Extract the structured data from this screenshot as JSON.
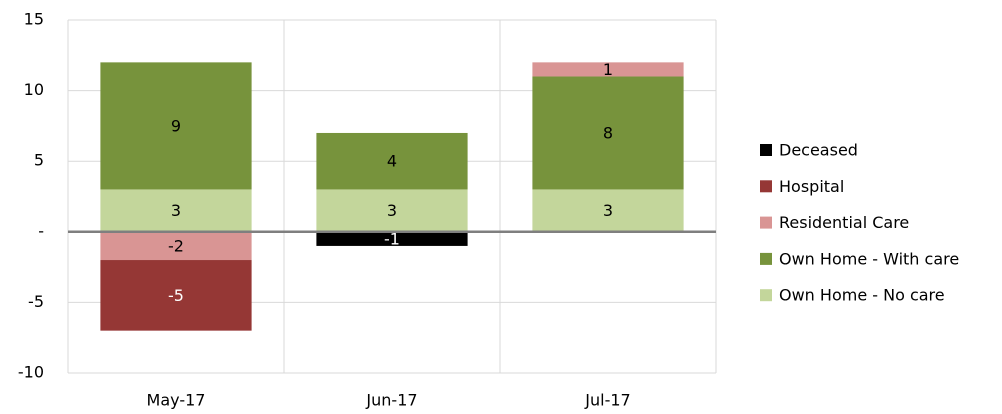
{
  "chart_data": {
    "type": "stacked_bar",
    "categories": [
      "May-17",
      "Jun-17",
      "Jul-17"
    ],
    "series": [
      {
        "name": "Deceased",
        "color": "#000000",
        "values": [
          null,
          -1,
          null
        ]
      },
      {
        "name": "Hospital",
        "color": "#953735",
        "values": [
          -5,
          null,
          null
        ]
      },
      {
        "name": "Residential Care",
        "color": "#d99594",
        "values": [
          -2,
          null,
          1
        ]
      },
      {
        "name": "Own Home - With care",
        "color": "#77933c",
        "values": [
          9,
          4,
          8
        ]
      },
      {
        "name": "Own Home - No care",
        "color": "#c3d69b",
        "values": [
          3,
          3,
          3
        ]
      }
    ],
    "ylim": [
      -10,
      15
    ],
    "yticks": [
      -10,
      -5,
      {
        "value": 0,
        "label": "-"
      },
      5,
      10,
      15
    ],
    "grid": true,
    "legend": "right"
  }
}
